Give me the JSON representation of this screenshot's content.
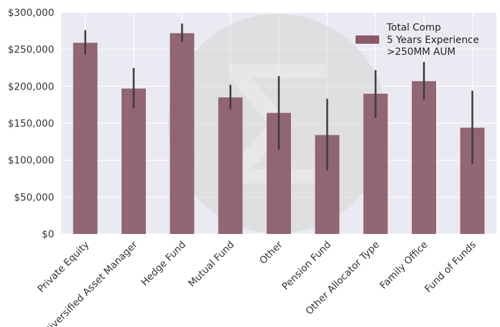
{
  "chart_data": {
    "type": "bar",
    "categories": [
      "Private Equity",
      "Diversified Asset Manager",
      "Hedge Fund",
      "Mutual Fund",
      "Other",
      "Pension Fund",
      "Other Allocator Type",
      "Family Office",
      "Fund of Funds"
    ],
    "series": [
      {
        "name": "Total Comp\n5 Years Experience\n>250MM AUM",
        "values": [
          259000,
          197000,
          272000,
          185000,
          164000,
          134000,
          190000,
          207000,
          144000
        ],
        "error_low": [
          243000,
          170000,
          260000,
          169000,
          114000,
          86000,
          157000,
          182000,
          95000
        ],
        "error_high": [
          276000,
          225000,
          285000,
          202000,
          214000,
          183000,
          222000,
          233000,
          194000
        ]
      }
    ],
    "y_ticks": [
      "$0",
      "$50,000",
      "$100,000",
      "$150,000",
      "$200,000",
      "$250,000",
      "$300,000"
    ],
    "y_tick_values": [
      0,
      50000,
      100000,
      150000,
      200000,
      250000,
      300000
    ],
    "ylim": [
      0,
      300000
    ],
    "legend": {
      "lines": [
        "Total Comp",
        "5 Years Experience",
        ">250MM AUM"
      ],
      "position": "top-right"
    },
    "grid": true,
    "colors": {
      "bar": "#8a5a68",
      "error_bar": "#3d3d3d",
      "plot_bg": "#eaeaf2",
      "grid": "#ffffff",
      "watermark": "#d6d6d6"
    }
  }
}
